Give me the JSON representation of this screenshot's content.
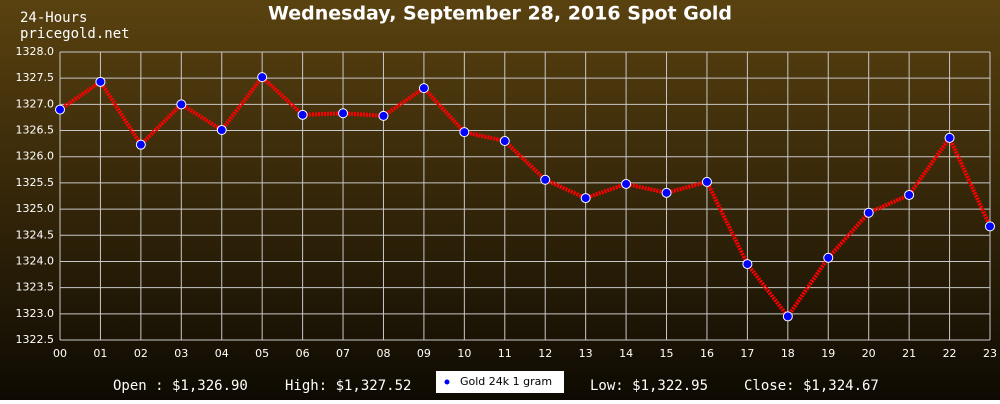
{
  "chart_data": {
    "type": "line",
    "title": "Wednesday, September 28, 2016 Spot Gold",
    "header": [
      "24-Hours",
      "pricegold.net"
    ],
    "categories": [
      "00",
      "01",
      "02",
      "03",
      "04",
      "05",
      "06",
      "07",
      "08",
      "09",
      "10",
      "11",
      "12",
      "13",
      "14",
      "15",
      "16",
      "17",
      "18",
      "19",
      "20",
      "21",
      "22",
      "23"
    ],
    "series": [
      {
        "name": "Gold 24k 1 gram",
        "color": "#ff0000",
        "marker_color": "#0000ff",
        "values": [
          1326.9,
          1327.43,
          1326.23,
          1327.0,
          1326.51,
          1327.52,
          1326.8,
          1326.83,
          1326.78,
          1327.31,
          1326.47,
          1326.3,
          1325.56,
          1325.21,
          1325.48,
          1325.31,
          1325.52,
          1323.95,
          1322.95,
          1324.07,
          1324.93,
          1325.27,
          1326.36,
          1324.67
        ]
      }
    ],
    "ylim": [
      1322.5,
      1328.0
    ],
    "yticks": [
      {
        "value": 1322.5,
        "label": "1322.5"
      },
      {
        "value": 1323,
        "label": "1323.0"
      },
      {
        "value": 1323.5,
        "label": "1323.5"
      },
      {
        "value": 1324,
        "label": "1324.0"
      },
      {
        "value": 1324.5,
        "label": "1324.5"
      },
      {
        "value": 1325,
        "label": "1325.0"
      },
      {
        "value": 1325.5,
        "label": "1325.5"
      },
      {
        "value": 1326,
        "label": "1326.0"
      },
      {
        "value": 1326.5,
        "label": "1326.5"
      },
      {
        "value": 1327,
        "label": "1327.0"
      },
      {
        "value": 1327.5,
        "label": "1327.5"
      },
      {
        "value": 1328,
        "label": "1328.0"
      }
    ],
    "grid": true,
    "summary": [
      "Open : $1,326.90",
      "High: $1,327.52",
      "Low: $1,322.95",
      "Close: $1,324.67"
    ]
  }
}
